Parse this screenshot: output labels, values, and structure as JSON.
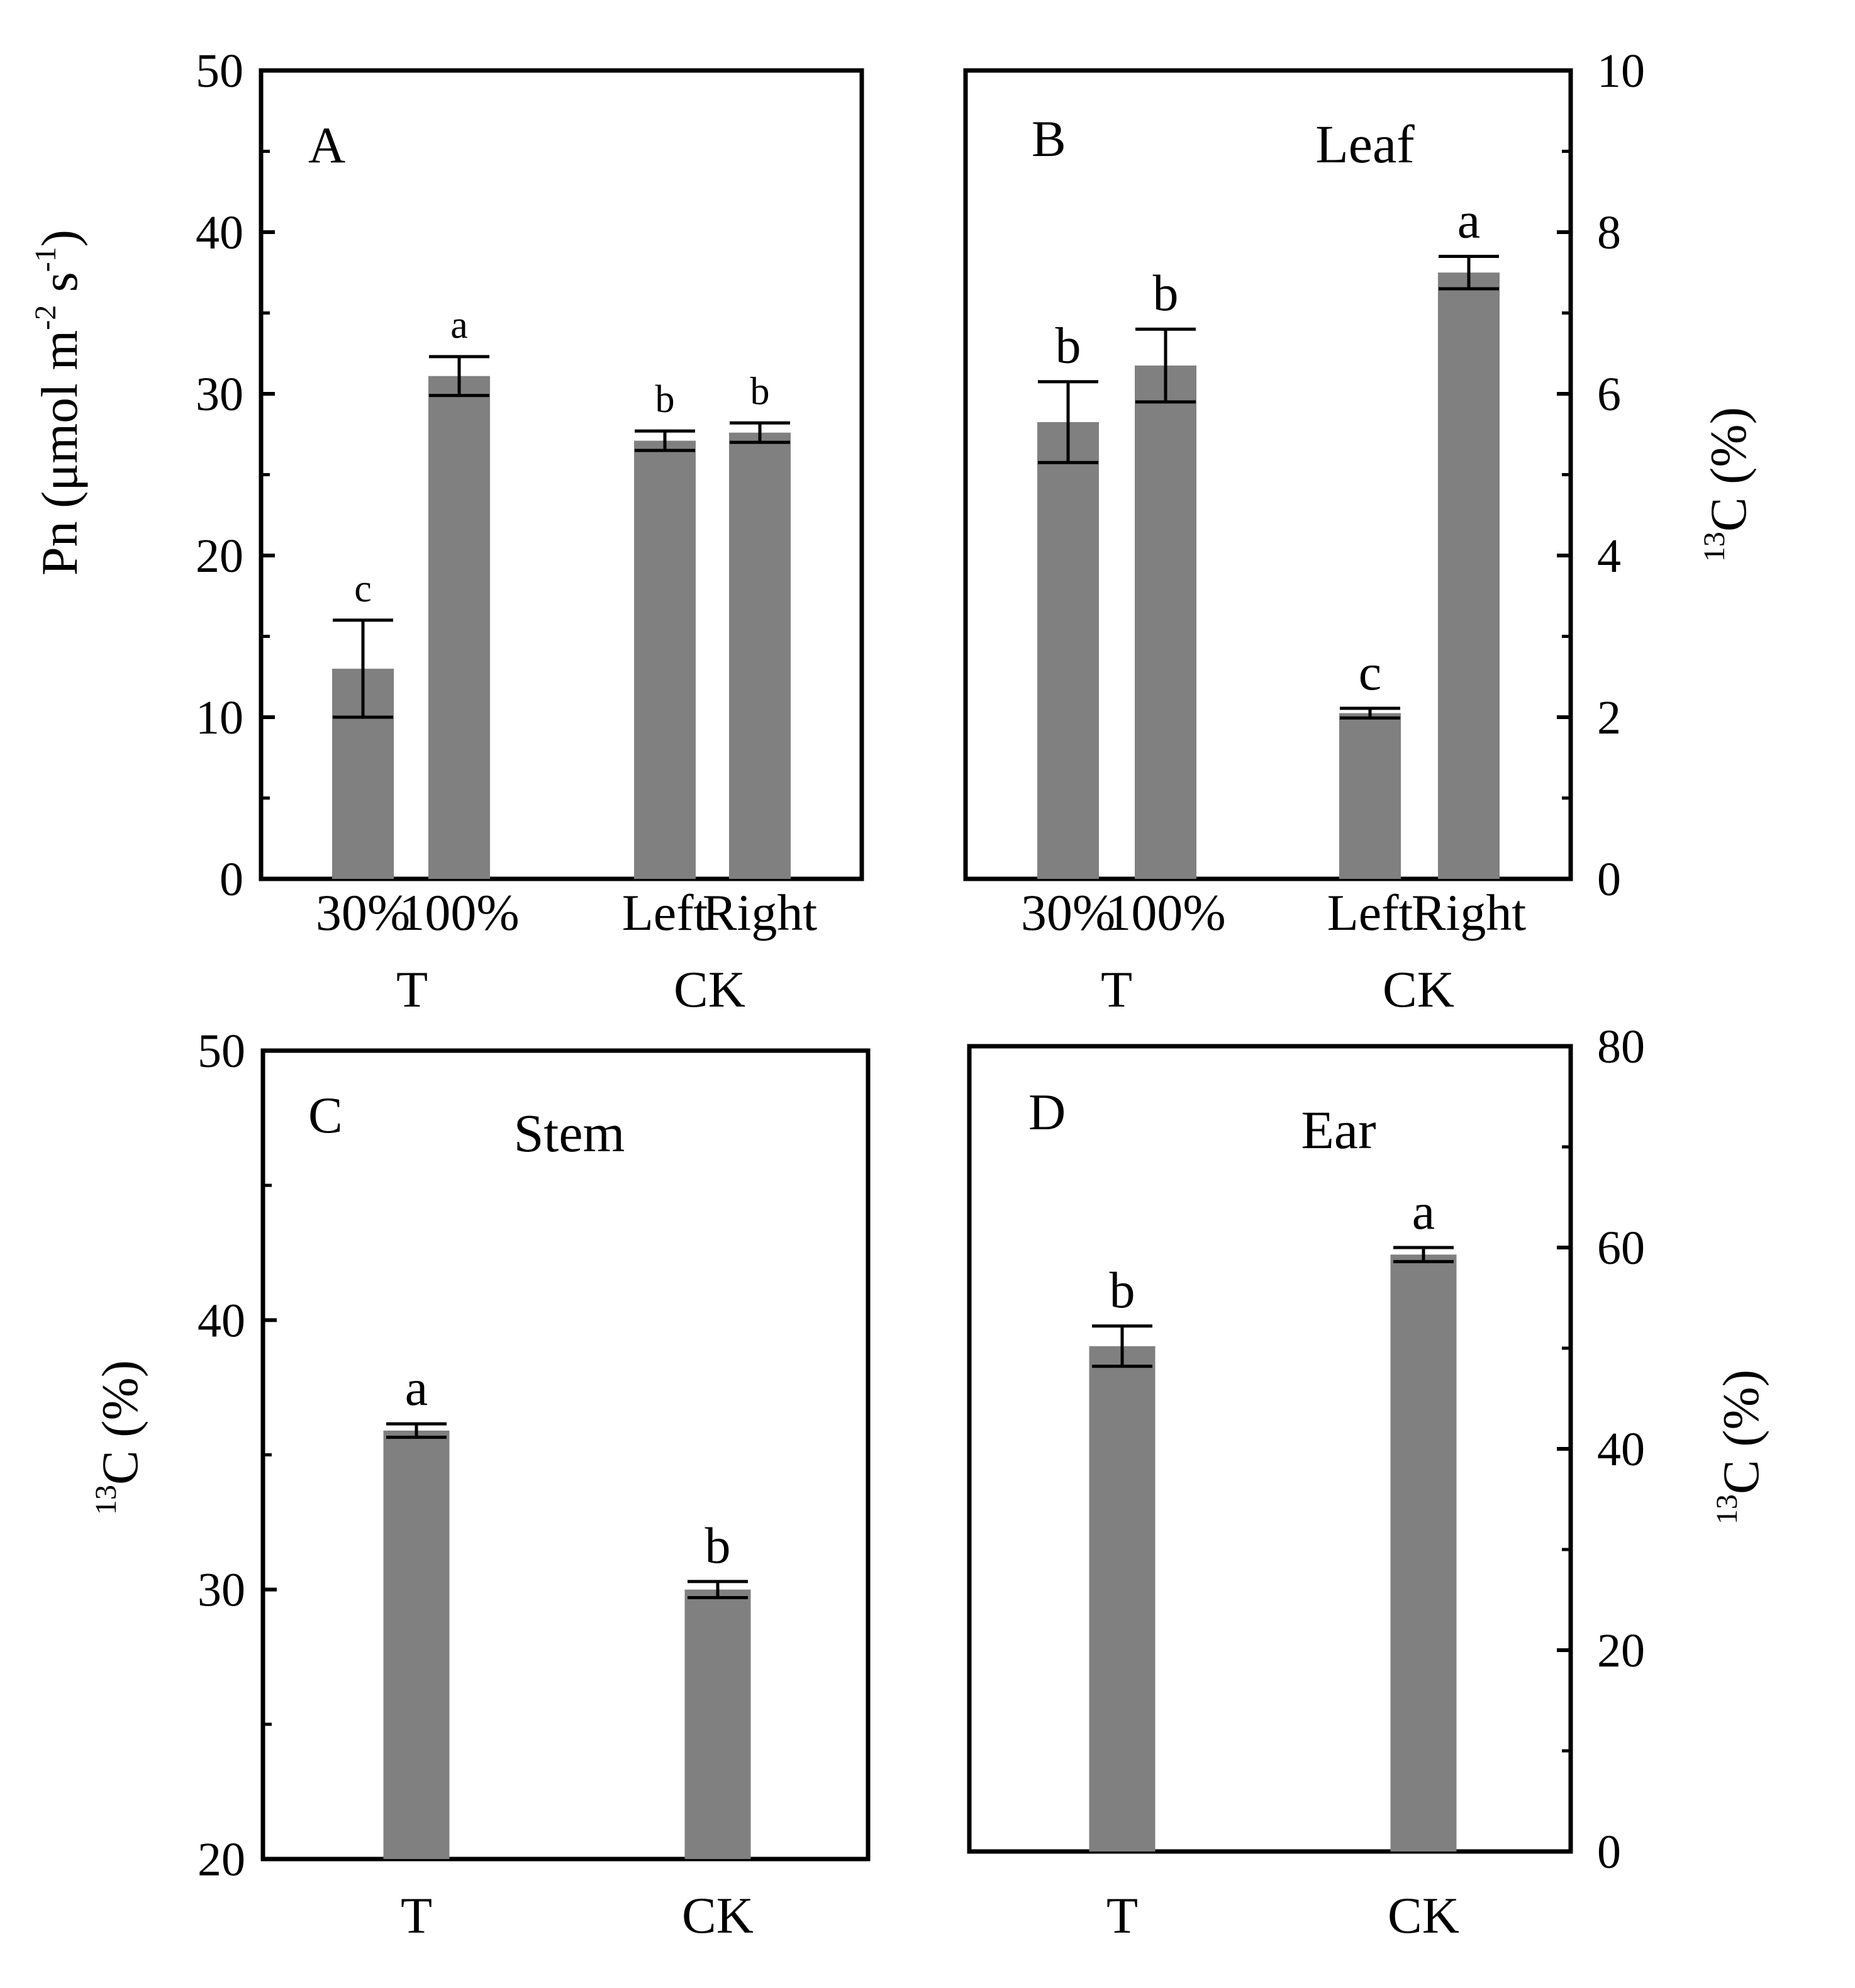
{
  "chart_data": [
    {
      "panel": "A",
      "type": "bar",
      "title": "",
      "ylabel": {
        "prefix": "Pn (μmol m",
        "sup1": "-2",
        "mid": " s",
        "sup2": "-1",
        "suffix": ")"
      },
      "ylim": [
        0,
        50
      ],
      "yticks": [
        0,
        10,
        20,
        30,
        40,
        50
      ],
      "categories": [
        "30%",
        "100%",
        "Left",
        "Right"
      ],
      "groups": [
        {
          "label": "T",
          "members": [
            0,
            1
          ]
        },
        {
          "label": "CK",
          "members": [
            2,
            3
          ]
        }
      ],
      "values": [
        13.0,
        31.1,
        27.1,
        27.6
      ],
      "errors": [
        3.0,
        1.2,
        0.6,
        0.6
      ],
      "significance": [
        "c",
        "a",
        "b",
        "b"
      ],
      "color": "#808080"
    },
    {
      "panel": "B",
      "type": "bar",
      "title": "Leaf",
      "ylabel": {
        "prefix": "",
        "sup1": "13",
        "mid": "C (%)",
        "sup2": "",
        "suffix": ""
      },
      "ylim": [
        0,
        10
      ],
      "yticks": [
        0,
        2,
        4,
        6,
        8,
        10
      ],
      "categories": [
        "30%",
        "100%",
        "Left",
        "Right"
      ],
      "groups": [
        {
          "label": "T",
          "members": [
            0,
            1
          ]
        },
        {
          "label": "CK",
          "members": [
            2,
            3
          ]
        }
      ],
      "values": [
        5.65,
        6.35,
        2.05,
        7.5
      ],
      "errors": [
        0.5,
        0.45,
        0.06,
        0.2
      ],
      "significance": [
        "b",
        "b",
        "c",
        "a"
      ],
      "color": "#808080"
    },
    {
      "panel": "C",
      "type": "bar",
      "title": "Stem",
      "ylabel": {
        "prefix": "",
        "sup1": "13",
        "mid": "C (%)",
        "sup2": "",
        "suffix": ""
      },
      "ylim": [
        20,
        50
      ],
      "yticks": [
        20,
        30,
        40,
        50
      ],
      "categories": [
        "T",
        "CK"
      ],
      "groups": [],
      "values": [
        35.9,
        30.0
      ],
      "errors": [
        0.25,
        0.3
      ],
      "significance": [
        "a",
        "b"
      ],
      "color": "#808080"
    },
    {
      "panel": "D",
      "type": "bar",
      "title": "Ear",
      "ylabel": {
        "prefix": "",
        "sup1": "13",
        "mid": "C (%)",
        "sup2": "",
        "suffix": ""
      },
      "ylim": [
        0,
        80
      ],
      "yticks": [
        0,
        20,
        40,
        60,
        80
      ],
      "categories": [
        "T",
        "CK"
      ],
      "groups": [],
      "values": [
        50.2,
        59.3
      ],
      "errors": [
        2.0,
        0.7
      ],
      "significance": [
        "b",
        "a"
      ],
      "color": "#808080"
    }
  ]
}
